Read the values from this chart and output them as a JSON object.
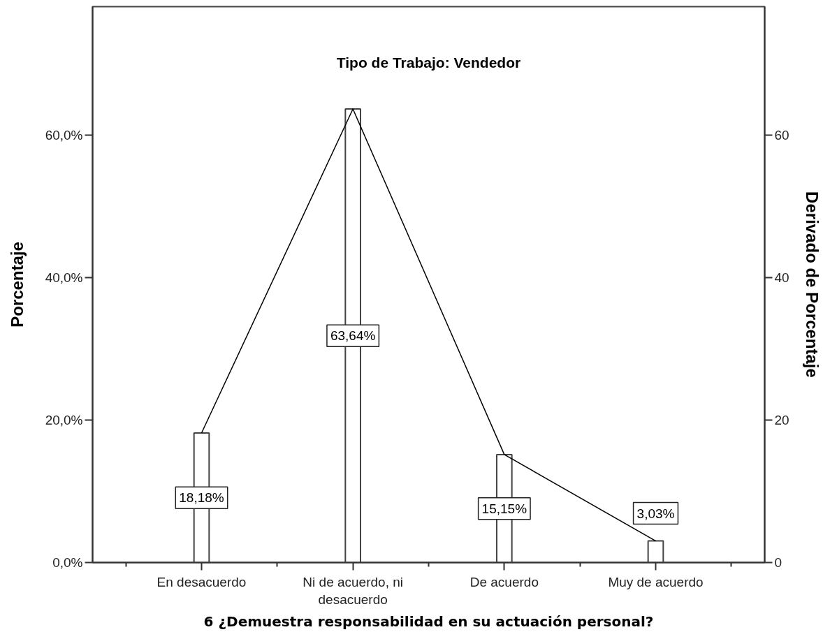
{
  "chart_data": {
    "type": "bar",
    "title": "Tipo de Trabajo: Vendedor",
    "xlabel": "6 ¿Demuestra responsabilidad en su actuación personal?",
    "ylabel": "Porcentaje",
    "y2label": "Derivado de Porcentaje",
    "categories": [
      "En desacuerdo",
      "Ni de acuerdo, ni desacuerdo",
      "De acuerdo",
      "Muy de acuerdo"
    ],
    "series": [
      {
        "color": "#ffffff",
        "values": [
          18.18,
          63.64,
          15.15,
          3.03
        ],
        "value_labels": [
          "18,18%",
          "63,64%",
          "15,15%",
          "3,03%"
        ]
      },
      {
        "type": "line",
        "axis": "y2",
        "color": "#000000",
        "values": [
          18.18,
          63.64,
          15.15,
          3.03
        ]
      }
    ],
    "ylim": [
      0,
      78
    ],
    "yticks": [
      {
        "value": 0,
        "label": "0,0%"
      },
      {
        "value": 20,
        "label": "20,0%"
      },
      {
        "value": 40,
        "label": "40,0%"
      },
      {
        "value": 60,
        "label": "60,0%"
      }
    ],
    "y2lim": [
      0,
      78
    ],
    "y2ticks": [
      0,
      20,
      40,
      60
    ]
  }
}
